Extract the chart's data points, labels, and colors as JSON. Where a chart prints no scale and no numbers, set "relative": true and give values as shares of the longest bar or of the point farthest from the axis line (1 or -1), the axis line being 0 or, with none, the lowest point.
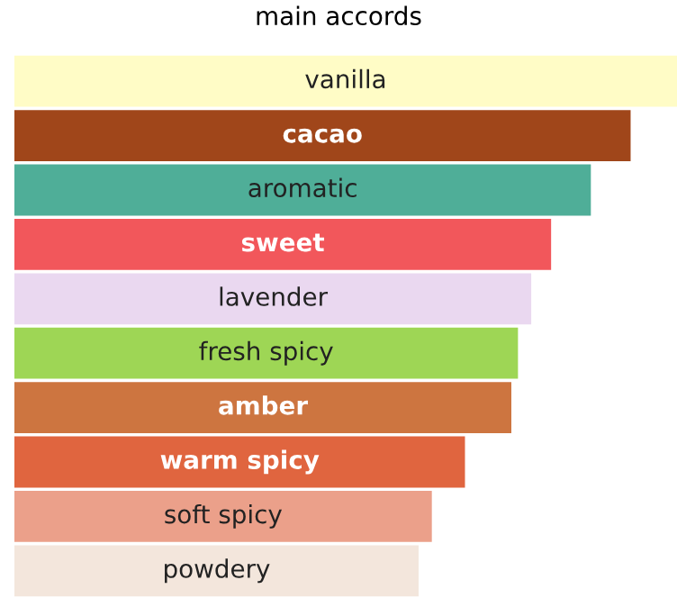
{
  "chart_data": {
    "type": "bar",
    "orientation": "horizontal",
    "relative": true,
    "title": "main accords",
    "categories": [
      "vanilla",
      "cacao",
      "aromatic",
      "sweet",
      "lavender",
      "fresh spicy",
      "amber",
      "warm spicy",
      "soft spicy",
      "powdery"
    ],
    "values": [
      1,
      0.93,
      0.87,
      0.81,
      0.78,
      0.76,
      0.75,
      0.68,
      0.63,
      0.61
    ],
    "colors": [
      "#fffcc6",
      "#a0461a",
      "#4fae98",
      "#f2575b",
      "#ead8f0",
      "#9ed655",
      "#cd7540",
      "#e0653f",
      "#eba08a",
      "#f3e6dc"
    ],
    "legend": false
  }
}
